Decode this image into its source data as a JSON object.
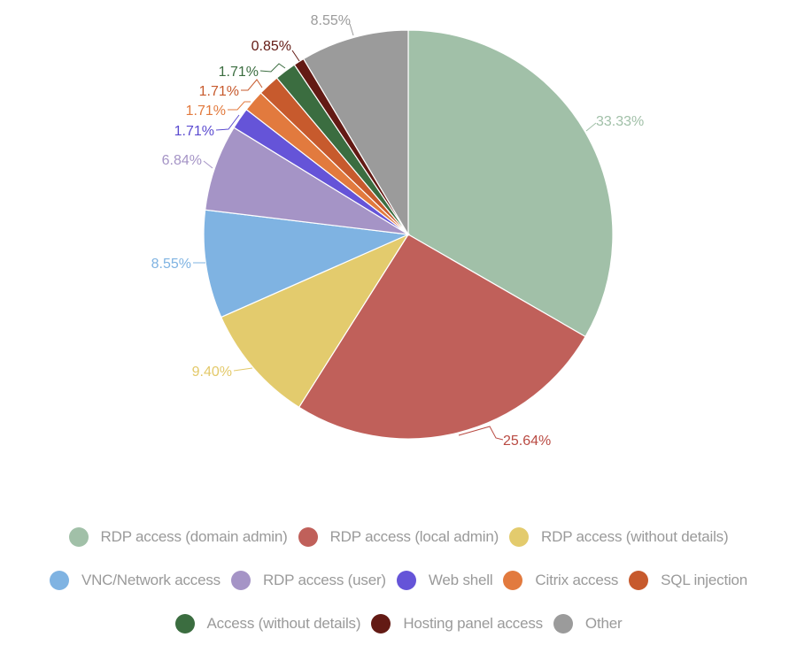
{
  "chart_data": {
    "type": "pie",
    "start_angle": "12 o'clock, clockwise",
    "legend_position": "bottom",
    "series": [
      {
        "name": "RDP access (domain admin)",
        "value": 33.33,
        "label": "33.33%",
        "color": "#a1c0a8",
        "label_color": "#a1c0a8"
      },
      {
        "name": "RDP access (local admin)",
        "value": 25.64,
        "label": "25.64%",
        "color": "#c0605a",
        "label_color": "#b94a42"
      },
      {
        "name": "RDP access (without details)",
        "value": 9.4,
        "label": "9.40%",
        "color": "#e3cb6d",
        "label_color": "#e3c96a"
      },
      {
        "name": "VNC/Network access",
        "value": 8.55,
        "label": "8.55%",
        "color": "#7fb3e2",
        "label_color": "#7fb3e2"
      },
      {
        "name": "RDP access (user)",
        "value": 6.84,
        "label": "6.84%",
        "color": "#a594c6",
        "label_color": "#a594c6"
      },
      {
        "name": "Web shell",
        "value": 1.71,
        "label": "1.71%",
        "color": "#6554d8",
        "label_color": "#5b4bd0"
      },
      {
        "name": "Citrix access",
        "value": 1.71,
        "label": "1.71%",
        "color": "#e27a3e",
        "label_color": "#e27a3e"
      },
      {
        "name": "SQL injection",
        "value": 1.71,
        "label": "1.71%",
        "color": "#c75a2d",
        "label_color": "#c75a2d"
      },
      {
        "name": "Access (without details)",
        "value": 1.71,
        "label": "1.71%",
        "color": "#3b6d40",
        "label_color": "#3b6d40"
      },
      {
        "name": "Hosting panel access",
        "value": 0.85,
        "label": "0.85%",
        "color": "#631a14",
        "label_color": "#631a14"
      },
      {
        "name": "Other",
        "value": 8.55,
        "label": "8.55%",
        "color": "#9b9b9b",
        "label_color": "#9b9b9b"
      }
    ]
  }
}
